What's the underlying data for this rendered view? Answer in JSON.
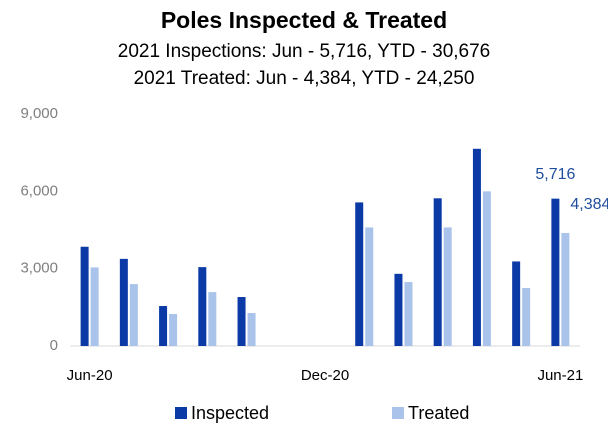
{
  "chart_data": {
    "type": "bar",
    "title": "Poles Inspected & Treated",
    "subtitle": [
      "2021 Inspections:  Jun - 5,716, YTD - 30,676",
      "2021 Treated:  Jun - 4,384, YTD - 24,250"
    ],
    "categories": [
      "Jun-20",
      null,
      null,
      null,
      null,
      null,
      "Dec-20",
      null,
      null,
      null,
      null,
      null,
      "Jun-21"
    ],
    "series": [
      {
        "name": "Inspected",
        "color": "#0b3aa6",
        "values": [
          3850,
          3380,
          1550,
          3060,
          1900,
          0,
          0,
          5570,
          2800,
          5730,
          7650,
          3280,
          5716
        ],
        "value_labels": [
          null,
          null,
          null,
          null,
          null,
          null,
          null,
          null,
          null,
          null,
          null,
          null,
          "5,716"
        ]
      },
      {
        "name": "Treated",
        "color": "#a9c3ea",
        "values": [
          3050,
          2400,
          1240,
          2090,
          1280,
          0,
          0,
          4600,
          2480,
          4600,
          6000,
          2250,
          4384
        ],
        "value_labels": [
          null,
          null,
          null,
          null,
          null,
          null,
          null,
          null,
          null,
          null,
          null,
          null,
          "4,384"
        ]
      }
    ],
    "ylim": [
      0,
      9000
    ],
    "yticks": [
      0,
      {
        "value": 3000,
        "label": "3,000"
      },
      {
        "value": 6000,
        "label": "6,000"
      },
      {
        "value": 9000,
        "label": "9,000"
      }
    ],
    "grid": false,
    "legend": "bottom"
  }
}
